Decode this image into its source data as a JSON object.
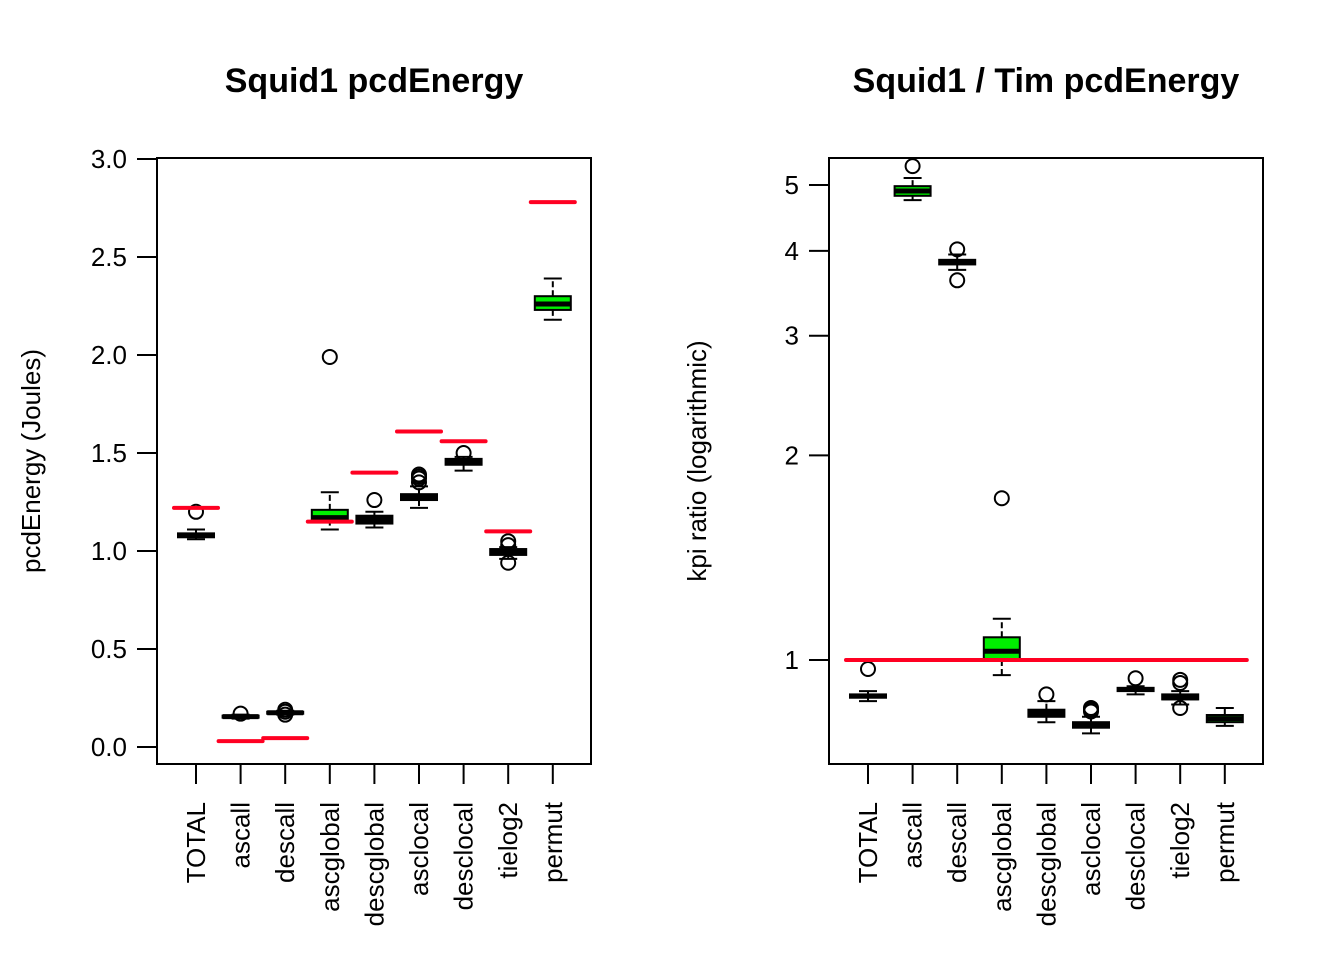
{
  "colors": {
    "highlight_box": "#00ee00",
    "reference_line": "#ff0022",
    "ink": "#000000"
  },
  "chart_data": [
    {
      "type": "boxplot",
      "title": "Squid1 pcdEnergy",
      "xlabel": "",
      "ylabel": "pcdEnergy (Joules)",
      "yscale": "linear",
      "ylim": [
        0.0,
        3.0
      ],
      "yticks": [
        0.0,
        0.5,
        1.0,
        1.5,
        2.0,
        2.5,
        3.0
      ],
      "ytick_labels": [
        "0.0",
        "0.5",
        "1.0",
        "1.5",
        "2.0",
        "2.5",
        "3.0"
      ],
      "categories": [
        "TOTAL",
        "ascall",
        "descall",
        "ascglobal",
        "descglobal",
        "asclocal",
        "desclocal",
        "tielog2",
        "permut"
      ],
      "boxes": [
        {
          "name": "TOTAL",
          "whisker_low": 1.06,
          "q1": 1.07,
          "median": 1.08,
          "q3": 1.09,
          "whisker_high": 1.11,
          "outliers": [
            1.2
          ],
          "highlight": false,
          "reference": 1.22
        },
        {
          "name": "ascall",
          "whisker_low": 0.145,
          "q1": 0.15,
          "median": 0.155,
          "q3": 0.16,
          "whisker_high": 0.165,
          "outliers": [
            0.17
          ],
          "highlight": false,
          "reference": 0.03
        },
        {
          "name": "descall",
          "whisker_low": 0.165,
          "q1": 0.17,
          "median": 0.175,
          "q3": 0.18,
          "whisker_high": 0.185,
          "outliers": [
            0.165,
            0.18,
            0.19
          ],
          "highlight": false,
          "reference": 0.045
        },
        {
          "name": "ascglobal",
          "whisker_low": 1.11,
          "q1": 1.16,
          "median": 1.17,
          "q3": 1.21,
          "whisker_high": 1.3,
          "outliers": [
            1.99
          ],
          "highlight": true,
          "reference": 1.15
        },
        {
          "name": "descglobal",
          "whisker_low": 1.12,
          "q1": 1.14,
          "median": 1.16,
          "q3": 1.18,
          "whisker_high": 1.2,
          "outliers": [
            1.26
          ],
          "highlight": false,
          "reference": 1.4
        },
        {
          "name": "asclocal",
          "whisker_low": 1.22,
          "q1": 1.26,
          "median": 1.27,
          "q3": 1.29,
          "whisker_high": 1.33,
          "outliers": [
            1.35,
            1.37,
            1.38,
            1.39
          ],
          "highlight": false,
          "reference": 1.61
        },
        {
          "name": "desclocal",
          "whisker_low": 1.41,
          "q1": 1.44,
          "median": 1.45,
          "q3": 1.47,
          "whisker_high": 1.48,
          "outliers": [
            1.5
          ],
          "highlight": false,
          "reference": 1.56
        },
        {
          "name": "tielog2",
          "whisker_low": 0.96,
          "q1": 0.98,
          "median": 0.99,
          "q3": 1.01,
          "whisker_high": 1.02,
          "outliers": [
            0.94,
            1.03,
            1.05
          ],
          "highlight": false,
          "reference": 1.1
        },
        {
          "name": "permut",
          "whisker_low": 2.18,
          "q1": 2.23,
          "median": 2.26,
          "q3": 2.3,
          "whisker_high": 2.39,
          "outliers": [],
          "highlight": true,
          "reference": 2.78
        }
      ],
      "grid": false,
      "legend": "none"
    },
    {
      "type": "boxplot",
      "title": "Squid1 / Tim pcdEnergy",
      "xlabel": "",
      "ylabel": "kpi ratio (logarithmic)",
      "yscale": "log",
      "ylim": [
        0.74,
        5.45
      ],
      "yticks": [
        1,
        2,
        3,
        4,
        5
      ],
      "ytick_labels": [
        "1",
        "2",
        "3",
        "4",
        "5"
      ],
      "categories": [
        "TOTAL",
        "ascall",
        "descall",
        "ascglobal",
        "descglobal",
        "asclocal",
        "desclocal",
        "tielog2",
        "permut"
      ],
      "reference_line": 1.0,
      "boxes": [
        {
          "name": "TOTAL",
          "whisker_low": 0.87,
          "q1": 0.88,
          "median": 0.885,
          "q3": 0.89,
          "whisker_high": 0.9,
          "outliers": [
            0.97
          ],
          "highlight": false
        },
        {
          "name": "ascall",
          "whisker_low": 4.75,
          "q1": 4.82,
          "median": 4.9,
          "q3": 4.98,
          "whisker_high": 5.12,
          "outliers": [
            5.33
          ],
          "highlight": true
        },
        {
          "name": "descall",
          "whisker_low": 3.75,
          "q1": 3.82,
          "median": 3.85,
          "q3": 3.88,
          "whisker_high": 3.95,
          "outliers": [
            3.62,
            4.02
          ],
          "highlight": false
        },
        {
          "name": "ascglobal",
          "whisker_low": 0.95,
          "q1": 1.0,
          "median": 1.03,
          "q3": 1.08,
          "whisker_high": 1.15,
          "outliers": [
            1.73
          ],
          "highlight": true
        },
        {
          "name": "descglobal",
          "whisker_low": 0.81,
          "q1": 0.825,
          "median": 0.835,
          "q3": 0.845,
          "whisker_high": 0.87,
          "outliers": [
            0.89
          ],
          "highlight": false
        },
        {
          "name": "asclocal",
          "whisker_low": 0.78,
          "q1": 0.795,
          "median": 0.8,
          "q3": 0.81,
          "whisker_high": 0.825,
          "outliers": [
            0.84,
            0.845,
            0.85
          ],
          "highlight": false
        },
        {
          "name": "desclocal",
          "whisker_low": 0.89,
          "q1": 0.9,
          "median": 0.905,
          "q3": 0.91,
          "whisker_high": 0.915,
          "outliers": [
            0.94
          ],
          "highlight": false
        },
        {
          "name": "tielog2",
          "whisker_low": 0.86,
          "q1": 0.875,
          "median": 0.88,
          "q3": 0.89,
          "whisker_high": 0.9,
          "outliers": [
            0.85,
            0.925,
            0.935
          ],
          "highlight": false
        },
        {
          "name": "permut",
          "whisker_low": 0.8,
          "q1": 0.81,
          "median": 0.82,
          "q3": 0.83,
          "whisker_high": 0.85,
          "outliers": [],
          "highlight": true
        }
      ],
      "grid": false,
      "legend": "none"
    }
  ]
}
